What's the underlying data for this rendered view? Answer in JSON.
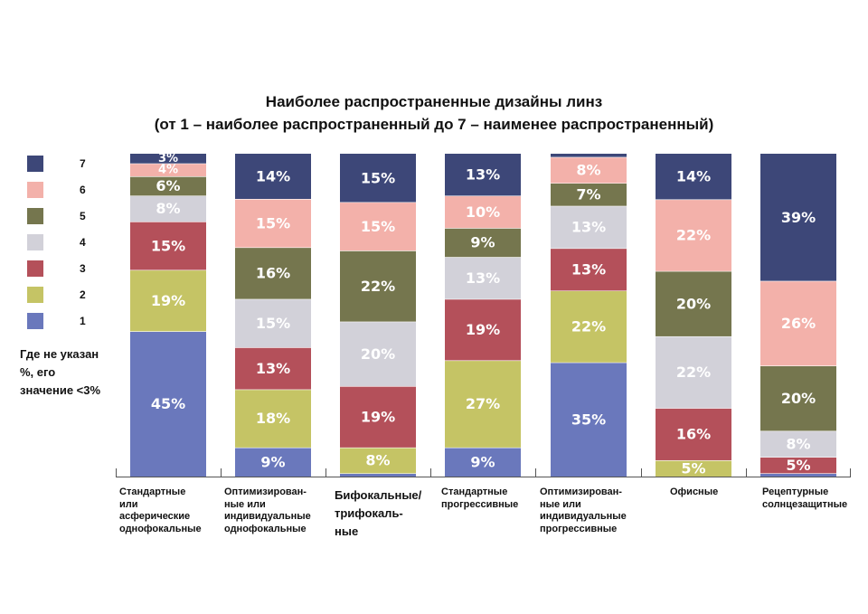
{
  "chart_data": {
    "type": "bar",
    "stacked": true,
    "title": "Наиболее распространенные дизайны линз",
    "subtitle": "(от 1 – наиболее распространенный до 7 – наименее распространенный)",
    "legend": {
      "position": "left",
      "entries": [
        "7",
        "6",
        "5",
        "4",
        "3",
        "2",
        "1"
      ]
    },
    "note_lines": [
      "Где не указан",
      "%, его",
      "значение <3%"
    ],
    "categories": [
      [
        "Стандартные",
        "или",
        "асферические",
        "однофокальные"
      ],
      [
        "Оптимизирован-",
        "ные или",
        "индивидуальные",
        "однофокальные"
      ],
      [
        "Бифокальные/",
        "трифокаль-",
        "ные"
      ],
      [
        "Стандартные",
        "прогрессивные"
      ],
      [
        "Оптимизирован-",
        "ные или",
        "индивидуальные",
        "прогрессивные"
      ],
      [
        "Офисные"
      ],
      [
        "Рецептурные",
        "солнцезащитные"
      ]
    ],
    "series": [
      {
        "name": "1",
        "color": "#6a78bc",
        "values": [
          45,
          9,
          1,
          9,
          35,
          0,
          1
        ]
      },
      {
        "name": "2",
        "color": "#c5c465",
        "values": [
          19,
          18,
          8,
          27,
          22,
          5,
          0
        ]
      },
      {
        "name": "3",
        "color": "#b4505a",
        "values": [
          15,
          13,
          19,
          19,
          13,
          16,
          5
        ]
      },
      {
        "name": "4",
        "color": "#d2d1d9",
        "values": [
          8,
          15,
          20,
          13,
          13,
          22,
          8
        ]
      },
      {
        "name": "5",
        "color": "#75764e",
        "values": [
          6,
          16,
          22,
          9,
          7,
          20,
          20
        ]
      },
      {
        "name": "6",
        "color": "#f3b1aa",
        "values": [
          4,
          15,
          15,
          10,
          8,
          22,
          26
        ]
      },
      {
        "name": "7",
        "color": "#3d4778",
        "values": [
          3,
          14,
          15,
          13,
          1,
          14,
          39
        ]
      }
    ],
    "labels": [
      [
        "45%",
        "19%",
        "15%",
        "8%",
        "6%",
        "4%",
        "3%"
      ],
      [
        "9%",
        "18%",
        "13%",
        "15%",
        "16%",
        "15%",
        "14%"
      ],
      [
        "",
        "8%",
        "19%",
        "20%",
        "22%",
        "15%",
        "15%"
      ],
      [
        "9%",
        "27%",
        "19%",
        "13%",
        "9%",
        "10%",
        "13%"
      ],
      [
        "35%",
        "22%",
        "13%",
        "13%",
        "7%",
        "8%",
        ""
      ],
      [
        "",
        "5%",
        "16%",
        "22%",
        "20%",
        "22%",
        "14%"
      ],
      [
        "",
        "",
        "5%",
        "8%",
        "20%",
        "26%",
        "39%"
      ]
    ],
    "ylim": [
      0,
      100
    ]
  }
}
